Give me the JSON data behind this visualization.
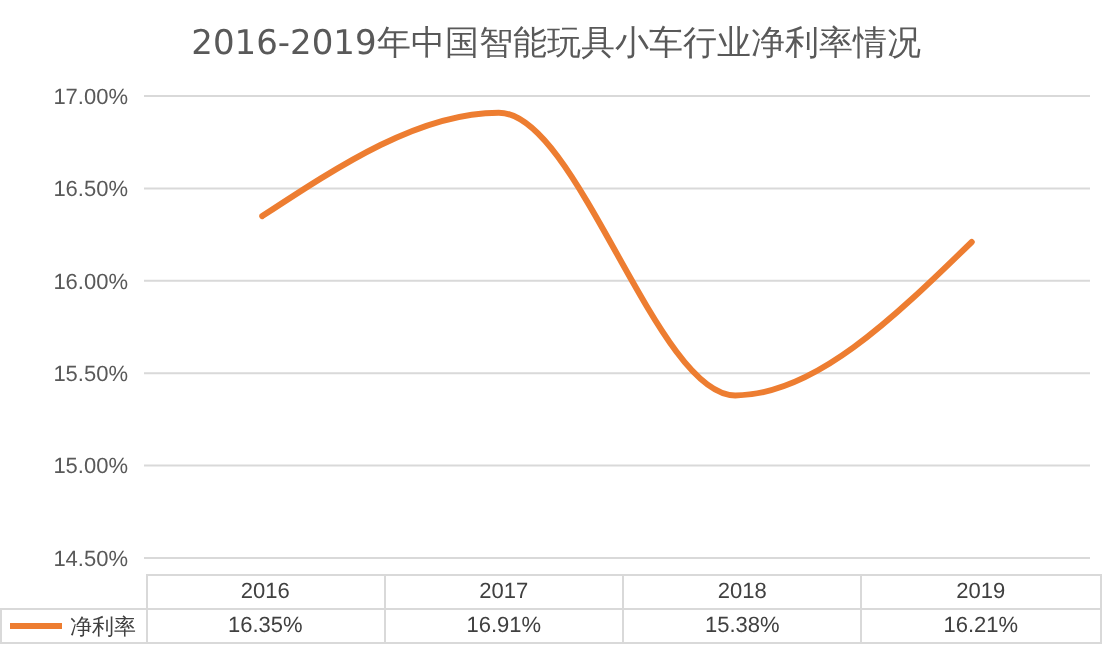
{
  "chart_data": {
    "type": "line",
    "title": "2016-2019年中国智能玩具小车行业净利率情况",
    "categories": [
      "2016",
      "2017",
      "2018",
      "2019"
    ],
    "series": [
      {
        "name": "净利率",
        "color": "#ed7d31",
        "values": [
          16.35,
          16.91,
          15.38,
          16.21
        ],
        "value_labels": [
          "16.35%",
          "16.91%",
          "15.38%",
          "16.21%"
        ]
      }
    ],
    "ylim": [
      14.5,
      17
    ],
    "yticks": [
      {
        "value": 14.5,
        "label": "14.50%"
      },
      {
        "value": 15,
        "label": "15.00%"
      },
      {
        "value": 15.5,
        "label": "15.50%"
      },
      {
        "value": 16,
        "label": "16.00%"
      },
      {
        "value": 16.5,
        "label": "16.50%"
      },
      {
        "value": 17,
        "label": "17.00%"
      }
    ],
    "grid": "y",
    "legend": "bottom",
    "marker": "none",
    "line_style": "solid"
  }
}
